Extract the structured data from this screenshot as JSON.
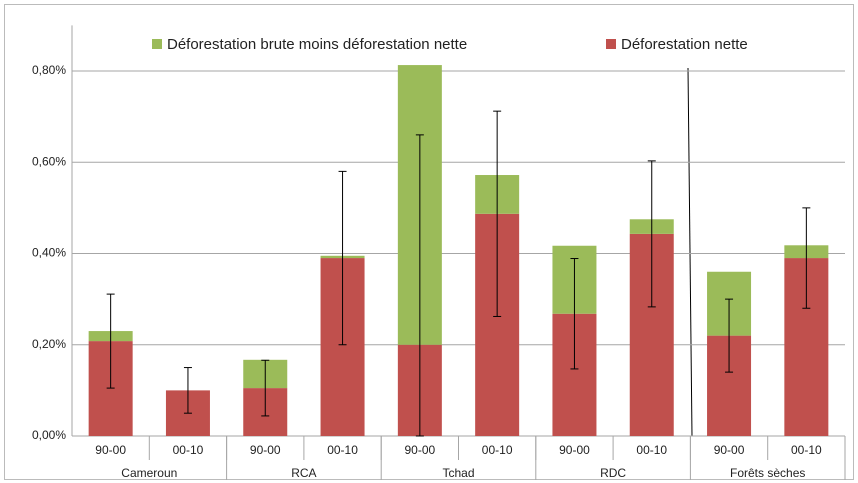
{
  "chart_data": {
    "type": "bar",
    "stacked": true,
    "categories": [
      "90-00",
      "00-10",
      "90-00",
      "00-10",
      "90-00",
      "00-10",
      "90-00",
      "00-10",
      "90-00",
      "00-10"
    ],
    "groups": [
      "Cameroun",
      "RCA",
      "Tchad",
      "RDC",
      "Forêts sèches"
    ],
    "series": [
      {
        "name": "Déforestation nette",
        "color": "#c0504d",
        "values": [
          0.208,
          0.1,
          0.105,
          0.39,
          0.2,
          0.487,
          0.268,
          0.443,
          0.22,
          0.39
        ],
        "errors": [
          0.103,
          0.05,
          0.061,
          0.19,
          0.46,
          0.225,
          0.121,
          0.16,
          0.08,
          0.11
        ]
      },
      {
        "name": "Déforestation brute moins déforestation nette",
        "color": "#9bbb59",
        "values": [
          0.022,
          0.0,
          0.062,
          0.005,
          0.613,
          0.085,
          0.149,
          0.032,
          0.14,
          0.028
        ]
      }
    ],
    "ylim": [
      0,
      0.9
    ],
    "yticks": [
      {
        "value": 0,
        "label": "0,00%"
      },
      {
        "value": 0.2,
        "label": "0,20%"
      },
      {
        "value": 0.4,
        "label": "0,40%"
      },
      {
        "value": 0.6,
        "label": "0,60%"
      },
      {
        "value": 0.8,
        "label": "0,80%"
      }
    ],
    "grid": true
  }
}
